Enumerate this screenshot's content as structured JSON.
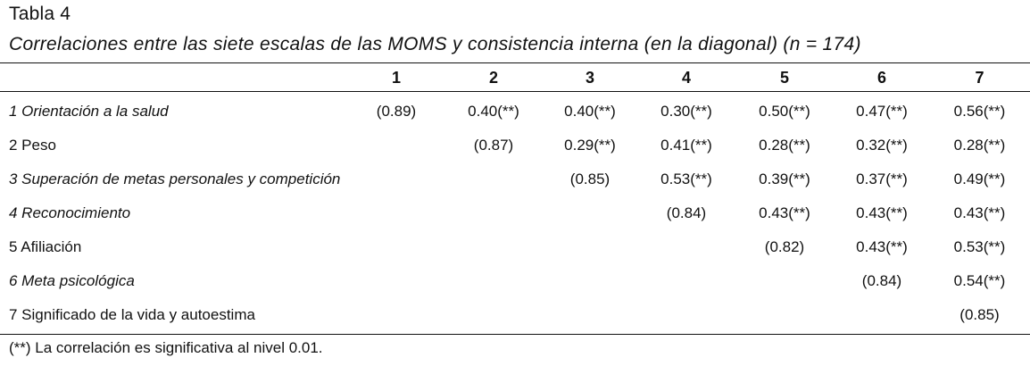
{
  "table_label": "Tabla 4",
  "caption": "Correlaciones entre las siete escalas de las MOMS y consistencia interna (en la diagonal) (n = 174)",
  "columns": [
    "1",
    "2",
    "3",
    "4",
    "5",
    "6",
    "7"
  ],
  "rows": [
    {
      "label": "1 Orientación a la salud",
      "italic": true,
      "values": [
        "(0.89)",
        "0.40(**)",
        "0.40(**)",
        "0.30(**)",
        "0.50(**)",
        "0.47(**)",
        "0.56(**)"
      ]
    },
    {
      "label": "2 Peso",
      "italic": false,
      "values": [
        "",
        "(0.87)",
        "0.29(**)",
        "0.41(**)",
        "0.28(**)",
        "0.32(**)",
        "0.28(**)"
      ]
    },
    {
      "label": "3 Superación de metas personales y competición",
      "italic": true,
      "values": [
        "",
        "",
        "(0.85)",
        "0.53(**)",
        "0.39(**)",
        "0.37(**)",
        "0.49(**)"
      ]
    },
    {
      "label": "4 Reconocimiento",
      "italic": true,
      "values": [
        "",
        "",
        "",
        "(0.84)",
        "0.43(**)",
        "0.43(**)",
        "0.43(**)"
      ]
    },
    {
      "label": "5 Afiliación",
      "italic": false,
      "values": [
        "",
        "",
        "",
        "",
        "(0.82)",
        "0.43(**)",
        "0.53(**)"
      ]
    },
    {
      "label": "6 Meta psicológica",
      "italic": true,
      "values": [
        "",
        "",
        "",
        "",
        "",
        "(0.84)",
        "0.54(**)"
      ]
    },
    {
      "label": "7 Significado de la vida y autoestima",
      "italic": false,
      "values": [
        "",
        "",
        "",
        "",
        "",
        "",
        "(0.85)"
      ]
    }
  ],
  "footnote": "(**) La correlación es significativa al nivel 0.01."
}
